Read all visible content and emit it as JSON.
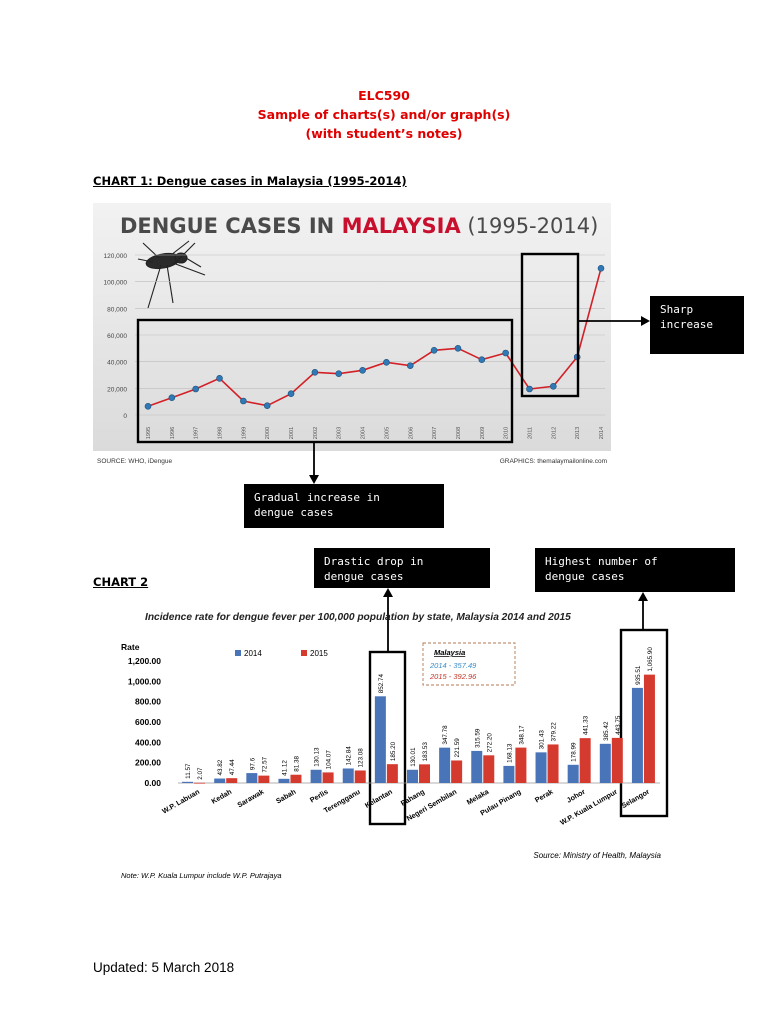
{
  "header": {
    "course": "ELC590",
    "line2": "Sample of charts(s) and/or graph(s)",
    "line3": "(with student’s notes)"
  },
  "chart1_heading": "CHART 1: Dengue cases in Malaysia (1995-2014)",
  "chart2_heading": "CHART 2",
  "notes": {
    "sharp": "Sharp\nincrease",
    "gradual": "Gradual increase in\ndengue cases",
    "drastic": "Drastic drop in\ndengue cases",
    "highest": "Highest number of\ndengue cases"
  },
  "footer": {
    "updated": "Updated: 5 March 2018"
  },
  "colors": {
    "line": "#d32027",
    "point": "#2f79b6",
    "bar_2014": "#4a74b8",
    "bar_2015": "#d53a2e",
    "title_red": "#c8102e",
    "title_gray": "#4a4a4a"
  },
  "chart_data": [
    {
      "type": "line",
      "title_part1": "DENGUE CASES IN ",
      "title_part2": "MALAYSIA",
      "title_part3": " (1995-2014)",
      "source": "SOURCE: WHO, iDengue",
      "graphics": "GRAPHICS: themalaymailonline.com",
      "x": [
        "1995",
        "1996",
        "1997",
        "1998",
        "1999",
        "2000",
        "2001",
        "2002",
        "2003",
        "2004",
        "2005",
        "2006",
        "2007",
        "2008",
        "2009",
        "2010",
        "2011",
        "2012",
        "2013",
        "2014"
      ],
      "y_ticks": [
        "0",
        "20,000",
        "40,000",
        "60,000",
        "80,000",
        "100,000",
        "120,000"
      ],
      "ylim": [
        0,
        120000
      ],
      "series": [
        {
          "values": [
            6500,
            13000,
            19500,
            27500,
            10500,
            7000,
            16000,
            32000,
            31000,
            33500,
            39500,
            37000,
            48500,
            50000,
            41500,
            46500,
            19500,
            21500,
            43500,
            110000
          ]
        }
      ]
    },
    {
      "type": "bar",
      "title": "Incidence rate for dengue fever per 100,000 population by state, Malaysia 2014 and 2015",
      "ylabel": "Rate",
      "y_ticks": [
        "0.00",
        "200.00",
        "400.00",
        "600.00",
        "800.00",
        "1,000.00",
        "1,200.00"
      ],
      "ylim": [
        0,
        1200
      ],
      "categories": [
        "W.P. Labuan",
        "Kedah",
        "Sarawak",
        "Sabah",
        "Perlis",
        "Terengganu",
        "Kelantan",
        "Pahang",
        "Negeri Sembilan",
        "Melaka",
        "Pulau Pinang",
        "Perak",
        "Johor",
        "W.P. Kuala Lumpur",
        "Selangor"
      ],
      "series": [
        {
          "name": "2014",
          "values": [
            11.57,
            43.82,
            97.6,
            41.12,
            130.13,
            142.84,
            852.74,
            130.01,
            347.78,
            315.59,
            168.13,
            301.43,
            178.99,
            385.42,
            935.51
          ],
          "labels": [
            "11.57",
            "43.82",
            "97.6",
            "41.12",
            "130.13",
            "142.84",
            "852.74",
            "130.01",
            "347.78",
            "315.59",
            "168.13",
            "301.43",
            "178.99",
            "385.42",
            "935.51"
          ]
        },
        {
          "name": "2015",
          "values": [
            2.07,
            47.44,
            72.57,
            81.38,
            104.07,
            123.08,
            185.2,
            183.53,
            221.59,
            272.2,
            348.17,
            379.22,
            441.33,
            443.75,
            1065.9
          ],
          "labels": [
            "2.07",
            "47.44",
            "72.57",
            "81.38",
            "104.07",
            "123.08",
            "185.20",
            "183.53",
            "221.59",
            "272.20",
            "348.17",
            "379.22",
            "441.33",
            "443.75",
            "1,065.90"
          ]
        }
      ],
      "legend": [
        "2014",
        "2015"
      ],
      "inset": {
        "title": "Malaysia",
        "line1": "2014 - 357.49",
        "line2": "2015 - 392.96"
      },
      "source": "Source: Ministry of Health, Malaysia",
      "note": "Note: W.P. Kuala Lumpur include W.P. Putrajaya"
    }
  ]
}
